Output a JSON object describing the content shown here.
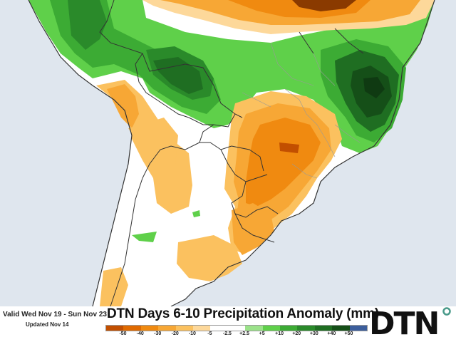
{
  "header": {
    "valid_text": "Valid Wed Nov 19 - Sun Nov 23",
    "updated_text": "Updated Nov 14",
    "title": "DTN Days 6-10 Precipitation Anomaly (mm)"
  },
  "legend": {
    "swatches": [
      "#c24f00",
      "#e06a00",
      "#f08a10",
      "#f7a735",
      "#fbc15f",
      "#fdd89a",
      "#ffffff",
      "#ffffff",
      "#9be28a",
      "#5fd04a",
      "#3cab34",
      "#2a8a2a",
      "#1f6e22",
      "#154f18",
      "#3c5e9c"
    ],
    "ticks": [
      {
        "label": "-50",
        "pos": 0.067
      },
      {
        "label": "-40",
        "pos": 0.133
      },
      {
        "label": "-30",
        "pos": 0.2
      },
      {
        "label": "-20",
        "pos": 0.267
      },
      {
        "label": "-10",
        "pos": 0.333
      },
      {
        "label": "-5",
        "pos": 0.4
      },
      {
        "label": "-2.5",
        "pos": 0.467
      },
      {
        "label": "+2.5",
        "pos": 0.533
      },
      {
        "label": "+5",
        "pos": 0.6
      },
      {
        "label": "+10",
        "pos": 0.667
      },
      {
        "label": "+20",
        "pos": 0.733
      },
      {
        "label": "+30",
        "pos": 0.8
      },
      {
        "label": "+40",
        "pos": 0.867
      },
      {
        "label": "+50",
        "pos": 0.933
      }
    ]
  },
  "logo": {
    "text": "DTN",
    "accent_color": "#4a9a8a"
  },
  "colors": {
    "ocean": "#dfe6ee",
    "land_neutral": "#ffffff"
  }
}
